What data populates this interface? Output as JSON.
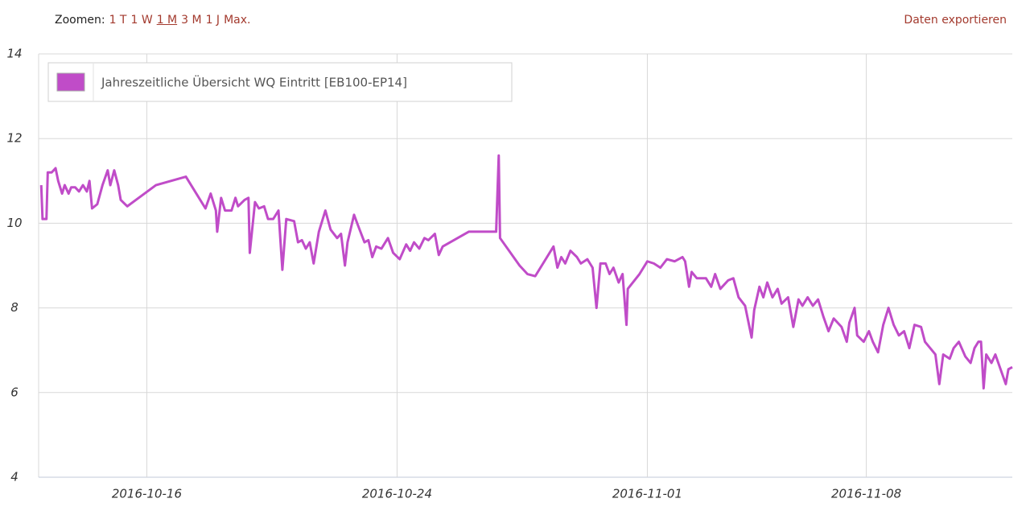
{
  "toolbar": {
    "zoom_label": "Zoomen:",
    "zoom_options": [
      "1 T",
      "1 W",
      "1 M",
      "3 M",
      "1 J",
      "Max."
    ],
    "selected_zoom": 2,
    "export": "Daten exportieren"
  },
  "chart_data": {
    "type": "line",
    "xlim": [
      "2016-10-12 13:00",
      "2016-11-12 16:00"
    ],
    "xticks": [
      "2016-10-16",
      "2016-10-24",
      "2016-11-01",
      "2016-11-08"
    ],
    "ylim": [
      4,
      14
    ],
    "yticks": [
      4,
      6,
      8,
      10,
      12,
      14
    ],
    "grid": true,
    "legend": "upper left",
    "x": [
      "2016-10-12 15:00",
      "2016-10-12 16:00",
      "2016-10-12 19:00",
      "2016-10-12 20:00",
      "2016-10-12 23:00",
      "2016-10-13 02:00",
      "2016-10-13 04:00",
      "2016-10-13 07:00",
      "2016-10-13 09:00",
      "2016-10-13 12:00",
      "2016-10-13 14:00",
      "2016-10-13 17:00",
      "2016-10-13 20:00",
      "2016-10-13 23:00",
      "2016-10-14 02:00",
      "2016-10-14 04:00",
      "2016-10-14 06:00",
      "2016-10-14 10:00",
      "2016-10-14 14:00",
      "2016-10-14 18:00",
      "2016-10-14 20:00",
      "2016-10-14 23:00",
      "2016-10-15 02:00",
      "2016-10-15 04:00",
      "2016-10-15 09:00",
      "2016-10-16 07:00",
      "2016-10-17 06:00",
      "2016-10-17 21:00",
      "2016-10-18 01:00",
      "2016-10-18 05:00",
      "2016-10-18 06:00",
      "2016-10-18 09:00",
      "2016-10-18 12:00",
      "2016-10-18 17:00",
      "2016-10-18 20:00",
      "2016-10-18 22:00",
      "2016-10-19 03:00",
      "2016-10-19 06:00",
      "2016-10-19 07:00",
      "2016-10-19 11:00",
      "2016-10-19 14:00",
      "2016-10-19 18:00",
      "2016-10-19 21:00",
      "2016-10-20 01:00",
      "2016-10-20 05:00",
      "2016-10-20 08:00",
      "2016-10-20 11:00",
      "2016-10-20 17:00",
      "2016-10-20 20:00",
      "2016-10-20 23:00",
      "2016-10-21 02:00",
      "2016-10-21 05:00",
      "2016-10-21 08:00",
      "2016-10-21 12:00",
      "2016-10-21 17:00",
      "2016-10-21 21:00",
      "2016-10-22 02:00",
      "2016-10-22 05:00",
      "2016-10-22 08:00",
      "2016-10-22 10:00",
      "2016-10-22 15:00",
      "2016-10-22 18:00",
      "2016-10-22 23:00",
      "2016-10-23 02:00",
      "2016-10-23 05:00",
      "2016-10-23 08:00",
      "2016-10-23 12:00",
      "2016-10-23 17:00",
      "2016-10-23 21:00",
      "2016-10-24 02:00",
      "2016-10-24 07:00",
      "2016-10-24 10:00",
      "2016-10-24 13:00",
      "2016-10-24 17:00",
      "2016-10-24 21:00",
      "2016-10-25 00:00",
      "2016-10-25 05:00",
      "2016-10-25 08:00",
      "2016-10-25 11:00",
      "2016-10-26 07:00",
      "2016-10-27 04:00",
      "2016-10-27 06:00",
      "2016-10-27 07:00",
      "2016-10-27 22:00",
      "2016-10-28 01:00",
      "2016-10-28 04:00",
      "2016-10-28 10:00",
      "2016-10-28 14:00",
      "2016-10-28 19:00",
      "2016-10-29 00:00",
      "2016-10-29 03:00",
      "2016-10-29 06:00",
      "2016-10-29 09:00",
      "2016-10-29 13:00",
      "2016-10-29 18:00",
      "2016-10-29 21:00",
      "2016-10-30 02:00",
      "2016-10-30 06:00",
      "2016-10-30 09:00",
      "2016-10-30 12:00",
      "2016-10-30 16:00",
      "2016-10-30 19:00",
      "2016-10-30 22:00",
      "2016-10-31 02:00",
      "2016-10-31 05:00",
      "2016-10-31 08:00",
      "2016-10-31 09:00",
      "2016-10-31 18:00",
      "2016-11-01 00:00",
      "2016-11-01 05:00",
      "2016-11-01 10:00",
      "2016-11-01 15:00",
      "2016-11-01 21:00",
      "2016-11-02 03:00",
      "2016-11-02 05:00",
      "2016-11-02 08:00",
      "2016-11-02 10:00",
      "2016-11-02 14:00",
      "2016-11-02 21:00",
      "2016-11-03 01:00",
      "2016-11-03 04:00",
      "2016-11-03 08:00",
      "2016-11-03 14:00",
      "2016-11-03 18:00",
      "2016-11-03 22:00",
      "2016-11-04 03:00",
      "2016-11-04 08:00",
      "2016-11-04 10:00",
      "2016-11-04 14:00",
      "2016-11-04 17:00",
      "2016-11-04 20:00",
      "2016-11-05 00:00",
      "2016-11-05 04:00",
      "2016-11-05 07:00",
      "2016-11-05 12:00",
      "2016-11-05 16:00",
      "2016-11-05 20:00",
      "2016-11-05 23:00",
      "2016-11-06 03:00",
      "2016-11-06 07:00",
      "2016-11-06 11:00",
      "2016-11-06 15:00",
      "2016-11-06 19:00",
      "2016-11-06 23:00",
      "2016-11-07 05:00",
      "2016-11-07 09:00",
      "2016-11-07 11:00",
      "2016-11-07 15:00",
      "2016-11-07 17:00",
      "2016-11-07 22:00",
      "2016-11-08 02:00",
      "2016-11-08 05:00",
      "2016-11-08 09:00",
      "2016-11-08 13:00",
      "2016-11-08 17:00",
      "2016-11-08 21:00",
      "2016-11-09 01:00",
      "2016-11-09 05:00",
      "2016-11-09 09:00",
      "2016-11-09 13:00",
      "2016-11-09 18:00",
      "2016-11-09 21:00",
      "2016-11-10 01:00",
      "2016-11-10 05:00",
      "2016-11-10 08:00",
      "2016-11-10 11:00",
      "2016-11-10 16:00",
      "2016-11-10 19:00",
      "2016-11-10 23:00",
      "2016-11-11 04:00",
      "2016-11-11 08:00",
      "2016-11-11 11:00",
      "2016-11-11 14:00",
      "2016-11-11 16:00",
      "2016-11-11 18:00",
      "2016-11-11 20:00",
      "2016-11-12 00:00",
      "2016-11-12 03:00",
      "2016-11-12 07:00",
      "2016-11-12 11:00",
      "2016-11-12 13:00",
      "2016-11-12 16:00"
    ],
    "series": [
      {
        "name": "Jahreszeitliche Übersicht WQ Eintritt [EB100-EP14]",
        "color": "#c04cc8",
        "values": [
          10.9,
          10.1,
          10.1,
          11.2,
          11.2,
          11.3,
          11.0,
          10.7,
          10.9,
          10.7,
          10.85,
          10.85,
          10.75,
          10.9,
          10.75,
          11.0,
          10.35,
          10.45,
          10.9,
          11.25,
          10.9,
          11.25,
          10.9,
          10.55,
          10.4,
          10.9,
          11.1,
          10.35,
          10.7,
          10.3,
          9.8,
          10.6,
          10.3,
          10.3,
          10.6,
          10.4,
          10.55,
          10.6,
          9.3,
          10.5,
          10.35,
          10.4,
          10.1,
          10.1,
          10.3,
          8.9,
          10.1,
          10.05,
          9.55,
          9.6,
          9.4,
          9.55,
          9.05,
          9.8,
          10.3,
          9.85,
          9.65,
          9.75,
          9.0,
          9.55,
          10.2,
          9.95,
          9.55,
          9.6,
          9.2,
          9.45,
          9.4,
          9.65,
          9.3,
          9.15,
          9.5,
          9.35,
          9.55,
          9.4,
          9.65,
          9.6,
          9.75,
          9.25,
          9.45,
          9.8,
          9.8,
          11.6,
          9.65,
          9.0,
          8.9,
          8.8,
          8.75,
          8.95,
          9.2,
          9.45,
          8.95,
          9.2,
          9.05,
          9.35,
          9.2,
          9.05,
          9.15,
          8.95,
          8.0,
          9.05,
          9.05,
          8.8,
          8.95,
          8.6,
          8.8,
          7.6,
          8.45,
          8.8,
          9.1,
          9.05,
          8.95,
          9.15,
          9.1,
          9.2,
          9.1,
          8.5,
          8.85,
          8.7,
          8.7,
          8.5,
          8.8,
          8.45,
          8.65,
          8.7,
          8.25,
          8.05,
          7.3,
          7.95,
          8.5,
          8.25,
          8.6,
          8.25,
          8.45,
          8.1,
          8.25,
          7.55,
          8.2,
          8.05,
          8.25,
          8.05,
          8.2,
          7.8,
          7.45,
          7.75,
          7.55,
          7.2,
          7.65,
          8.0,
          7.35,
          7.2,
          7.45,
          7.2,
          6.95,
          7.6,
          8.0,
          7.6,
          7.35,
          7.45,
          7.05,
          7.6,
          7.55,
          7.2,
          7.05,
          6.9,
          6.2,
          6.9,
          6.8,
          7.05,
          7.2,
          6.85,
          6.7,
          7.05,
          7.2,
          7.2,
          6.1,
          6.9,
          6.7,
          6.9,
          6.55,
          6.2,
          6.55,
          6.6
        ]
      }
    ]
  }
}
